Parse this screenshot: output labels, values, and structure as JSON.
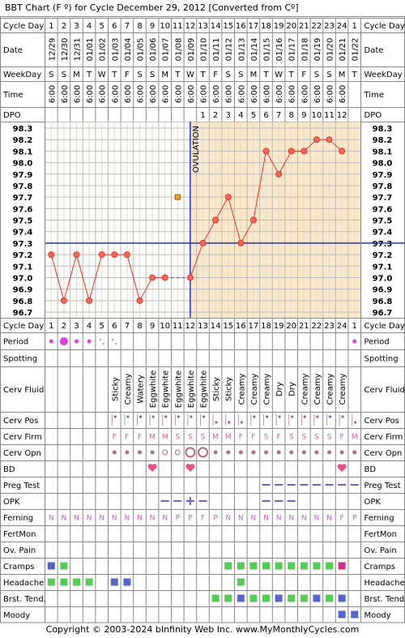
{
  "title": "BBT Chart (F º) for Cycle December 29, 2012  [Converted from Cº]",
  "row_labels": [
    "Cycle Day",
    "Date",
    "WeekDay",
    "Time",
    "DPO",
    "Period",
    "Spotting",
    "Cerv Fluid",
    "Cerv Pos",
    "Cerv Firm",
    "Cerv Opn",
    "BD",
    "Preg Test",
    "OPK",
    "Ferning",
    "FertMon",
    "Ov. Pain",
    "Cramps",
    "Headache",
    "Brst. Tend.",
    "Moody"
  ],
  "chart_data": {
    "type": "line",
    "cycle_days": [
      1,
      2,
      3,
      4,
      5,
      6,
      7,
      8,
      9,
      10,
      11,
      12,
      13,
      14,
      15,
      16,
      17,
      18,
      19,
      20,
      21,
      22,
      23,
      24,
      1
    ],
    "dates": [
      "12/29",
      "12/30",
      "12/31",
      "01/01",
      "01/02",
      "01/03",
      "01/04",
      "01/05",
      "01/06",
      "01/07",
      "01/08",
      "01/09",
      "01/10",
      "01/11",
      "01/12",
      "01/13",
      "01/14",
      "01/15",
      "01/16",
      "01/17",
      "01/18",
      "01/19",
      "01/20",
      "01/21",
      "01/22"
    ],
    "weekdays": [
      "S",
      "S",
      "M",
      "T",
      "W",
      "T",
      "F",
      "S",
      "S",
      "M",
      "T",
      "W",
      "T",
      "F",
      "S",
      "S",
      "M",
      "T",
      "W",
      "T",
      "F",
      "S",
      "S",
      "M",
      "T"
    ],
    "times": [
      "6:00",
      "6:00",
      "6:00",
      "6:00",
      "6:00",
      "6:00",
      "6:00",
      "6:00",
      "6:00",
      "6:00",
      "6:00",
      "6:00",
      "6:00",
      "6:00",
      "6:00",
      "6:00",
      "6:00",
      "6:00",
      "6:00",
      "6:00",
      "6:00",
      "6:00",
      "6:00",
      "6:00",
      null
    ],
    "dpo": [
      null,
      null,
      null,
      null,
      null,
      null,
      null,
      null,
      null,
      null,
      null,
      null,
      1,
      2,
      3,
      4,
      5,
      6,
      7,
      8,
      9,
      10,
      11,
      12,
      null
    ],
    "values": [
      97.2,
      96.8,
      97.2,
      96.8,
      97.2,
      97.2,
      97.2,
      96.8,
      97.0,
      97.0,
      null,
      97.0,
      97.3,
      97.5,
      97.7,
      97.3,
      97.5,
      98.1,
      97.9,
      98.1,
      98.1,
      98.2,
      98.2,
      98.1,
      null
    ],
    "discarded": [
      null,
      null,
      null,
      null,
      null,
      null,
      null,
      null,
      null,
      null,
      97.7,
      null,
      null,
      null,
      null,
      null,
      null,
      null,
      null,
      null,
      null,
      null,
      null,
      null,
      null
    ],
    "color": "#e8332d",
    "coverline": 97.3,
    "ovulation_day": 12,
    "ovulation_label": "OVULATION",
    "ylim": [
      96.7,
      98.3
    ],
    "yticks": [
      98.3,
      98.2,
      98.1,
      {
        "value": 98.0,
        "label": "98.0"
      },
      97.9,
      97.8,
      97.7,
      97.6,
      97.5,
      97.4,
      97.3,
      97.2,
      97.1,
      {
        "value": 97.0,
        "label": "97.0"
      },
      96.9,
      96.8,
      96.7
    ]
  },
  "cerv_fluid": [
    null,
    null,
    null,
    null,
    null,
    "Sticky",
    "Creamy",
    "Watery",
    "Eggwhite",
    "Eggwhite",
    "Eggwhite",
    "Eggwhite",
    "Eggwhite",
    "Sticky",
    "Sticky",
    "Creamy",
    "Creamy",
    "Creamy",
    "Dry",
    "Dry",
    "Creamy",
    "Creamy",
    "Creamy",
    "Creamy",
    null
  ],
  "cerv_firm": [
    null,
    null,
    null,
    null,
    null,
    "F",
    "F",
    "F",
    "M",
    "M",
    "S",
    "S",
    "S",
    "M",
    "M",
    "F",
    "F",
    "S",
    "F",
    "S",
    "S",
    "S",
    "S",
    "F",
    "M"
  ],
  "ferning": [
    "N",
    "N",
    "N",
    "N",
    "N",
    "N",
    "N",
    "N",
    "N",
    "N",
    "P",
    "P",
    "F",
    "P",
    "N",
    "N",
    "N",
    "N",
    "N",
    "N",
    "N",
    "N",
    "N",
    "F",
    "P"
  ],
  "footer": "Copyright © 2003-2024 bInfinity Web Inc.    www.MyMonthlyCycles.com"
}
